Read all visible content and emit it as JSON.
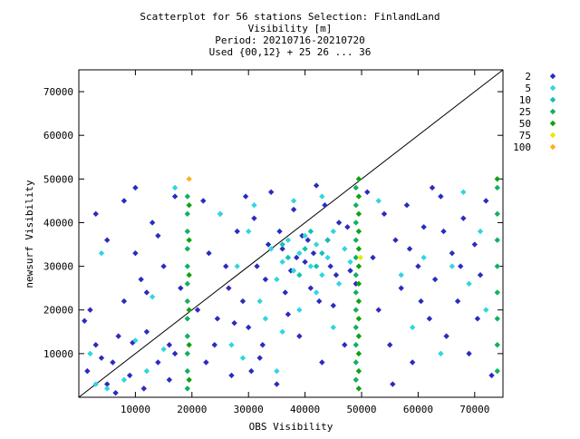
{
  "chart_data": {
    "type": "scatter",
    "title_lines": [
      "Scatterplot for   56 stations Selection: FinlandLand",
      "Visibility [m]",
      "Period: 20210716-20210720",
      "Used {00,12} + 25 26 ... 36"
    ],
    "xlabel": "OBS Visibility",
    "ylabel": "newsurf Visibility",
    "xlim": [
      0,
      75000
    ],
    "ylim": [
      0,
      75000
    ],
    "xticks": [
      10000,
      20000,
      30000,
      40000,
      50000,
      60000,
      70000
    ],
    "yticks": [
      10000,
      20000,
      30000,
      40000,
      50000,
      60000,
      70000
    ],
    "xtick_labels": [
      "10000",
      "20000",
      "30000",
      "40000",
      "50000",
      "60000",
      "70000"
    ],
    "ytick_labels": [
      "10000",
      "20000",
      "30000",
      "40000",
      "50000",
      "60000",
      "70000"
    ],
    "grid": false,
    "diagonal_line": true,
    "legend_position": "right",
    "legend": [
      {
        "label": "2",
        "color": "#2b2bbf"
      },
      {
        "label": "5",
        "color": "#2fd6e0"
      },
      {
        "label": "10",
        "color": "#12c0b0"
      },
      {
        "label": "25",
        "color": "#12b060"
      },
      {
        "label": "50",
        "color": "#10a010"
      },
      {
        "label": "75",
        "color": "#e8e800"
      },
      {
        "label": "100",
        "color": "#ffb020"
      }
    ],
    "series": [
      {
        "name": "2",
        "color": "#2b2bbf",
        "points": [
          [
            1000,
            17500
          ],
          [
            2000,
            20000
          ],
          [
            3000,
            12000
          ],
          [
            4000,
            9000
          ],
          [
            5000,
            3000
          ],
          [
            6000,
            8000
          ],
          [
            1500,
            6000
          ],
          [
            7000,
            14000
          ],
          [
            8000,
            22000
          ],
          [
            9000,
            5000
          ],
          [
            10000,
            33000
          ],
          [
            11000,
            27000
          ],
          [
            12000,
            15000
          ],
          [
            13000,
            40000
          ],
          [
            14000,
            8000
          ],
          [
            15000,
            30000
          ],
          [
            16000,
            12000
          ],
          [
            17000,
            46000
          ],
          [
            18000,
            25000
          ],
          [
            3000,
            42000
          ],
          [
            5000,
            36000
          ],
          [
            8000,
            45000
          ],
          [
            10000,
            48000
          ],
          [
            12000,
            24000
          ],
          [
            14000,
            37000
          ],
          [
            16000,
            4000
          ],
          [
            17000,
            10000
          ],
          [
            11500,
            2000
          ],
          [
            6500,
            1000
          ],
          [
            9500,
            12500
          ],
          [
            22000,
            45000
          ],
          [
            24000,
            12000
          ],
          [
            26000,
            30000
          ],
          [
            27000,
            5000
          ],
          [
            28000,
            38000
          ],
          [
            29000,
            22000
          ],
          [
            30000,
            16000
          ],
          [
            31000,
            41000
          ],
          [
            32000,
            9000
          ],
          [
            33000,
            27000
          ],
          [
            34000,
            47000
          ],
          [
            35000,
            3000
          ],
          [
            36000,
            34000
          ],
          [
            37000,
            19000
          ],
          [
            38000,
            43000
          ],
          [
            39000,
            14000
          ],
          [
            40000,
            31000
          ],
          [
            41000,
            25000
          ],
          [
            42000,
            48500
          ],
          [
            43000,
            8000
          ],
          [
            44000,
            36000
          ],
          [
            45000,
            21000
          ],
          [
            46000,
            40000
          ],
          [
            47000,
            12000
          ],
          [
            48000,
            29000
          ],
          [
            21000,
            20000
          ],
          [
            23000,
            33000
          ],
          [
            25000,
            42000
          ],
          [
            27500,
            17000
          ],
          [
            29500,
            46000
          ],
          [
            31500,
            30000
          ],
          [
            33500,
            35000
          ],
          [
            35500,
            38000
          ],
          [
            37500,
            29000
          ],
          [
            39500,
            37000
          ],
          [
            41500,
            33000
          ],
          [
            43500,
            44000
          ],
          [
            45500,
            28000
          ],
          [
            47500,
            39000
          ],
          [
            49000,
            26000
          ],
          [
            36500,
            24000
          ],
          [
            38500,
            32000
          ],
          [
            40500,
            36000
          ],
          [
            42500,
            22000
          ],
          [
            44500,
            30000
          ],
          [
            32500,
            12000
          ],
          [
            30500,
            6000
          ],
          [
            26500,
            25000
          ],
          [
            24500,
            18000
          ],
          [
            22500,
            8000
          ],
          [
            51000,
            47000
          ],
          [
            52000,
            32000
          ],
          [
            53000,
            20000
          ],
          [
            54000,
            42000
          ],
          [
            55000,
            12000
          ],
          [
            56000,
            36000
          ],
          [
            57000,
            25000
          ],
          [
            58000,
            44000
          ],
          [
            59000,
            8000
          ],
          [
            60000,
            30000
          ],
          [
            61000,
            39000
          ],
          [
            62000,
            18000
          ],
          [
            63000,
            27000
          ],
          [
            64000,
            46000
          ],
          [
            65000,
            14000
          ],
          [
            66000,
            33000
          ],
          [
            67000,
            22000
          ],
          [
            68000,
            41000
          ],
          [
            69000,
            10000
          ],
          [
            70000,
            35000
          ],
          [
            71000,
            28000
          ],
          [
            72000,
            45000
          ],
          [
            73000,
            5000
          ],
          [
            60500,
            22000
          ],
          [
            64500,
            38000
          ],
          [
            67500,
            30000
          ],
          [
            70500,
            18000
          ],
          [
            55500,
            3000
          ],
          [
            62500,
            48000
          ],
          [
            58500,
            34000
          ]
        ]
      },
      {
        "name": "5",
        "color": "#2fd6e0",
        "points": [
          [
            3000,
            3000
          ],
          [
            5000,
            2000
          ],
          [
            8000,
            4000
          ],
          [
            12000,
            6000
          ],
          [
            15000,
            11000
          ],
          [
            13000,
            23000
          ],
          [
            10000,
            13000
          ],
          [
            17000,
            48000
          ],
          [
            4000,
            33000
          ],
          [
            2000,
            10000
          ],
          [
            25000,
            42000
          ],
          [
            28000,
            30000
          ],
          [
            30000,
            38000
          ],
          [
            32000,
            22000
          ],
          [
            34000,
            34000
          ],
          [
            35000,
            27000
          ],
          [
            36000,
            31000
          ],
          [
            37000,
            36000
          ],
          [
            38000,
            29000
          ],
          [
            39000,
            33000
          ],
          [
            40000,
            37000
          ],
          [
            41000,
            30000
          ],
          [
            42000,
            35000
          ],
          [
            43000,
            28000
          ],
          [
            44000,
            32000
          ],
          [
            45000,
            38000
          ],
          [
            46000,
            26000
          ],
          [
            47000,
            34000
          ],
          [
            48000,
            31000
          ],
          [
            33000,
            18000
          ],
          [
            36000,
            15000
          ],
          [
            39000,
            20000
          ],
          [
            42000,
            24000
          ],
          [
            45000,
            16000
          ],
          [
            31000,
            44000
          ],
          [
            38000,
            45000
          ],
          [
            43000,
            46000
          ],
          [
            27000,
            12000
          ],
          [
            29000,
            9000
          ],
          [
            35000,
            6000
          ],
          [
            53000,
            45000
          ],
          [
            57000,
            28000
          ],
          [
            61000,
            32000
          ],
          [
            66000,
            30000
          ],
          [
            69000,
            26000
          ],
          [
            72000,
            20000
          ],
          [
            64000,
            10000
          ],
          [
            68000,
            47000
          ],
          [
            71000,
            38000
          ],
          [
            59000,
            16000
          ]
        ]
      },
      {
        "name": "10",
        "color": "#12c0b0",
        "points": [
          [
            37000,
            32000
          ],
          [
            40000,
            34000
          ],
          [
            42000,
            30000
          ],
          [
            44000,
            36000
          ],
          [
            39000,
            28000
          ],
          [
            41000,
            38000
          ],
          [
            36000,
            35000
          ],
          [
            43000,
            33000
          ]
        ]
      },
      {
        "name": "25",
        "color": "#12b060",
        "points": [
          [
            19200,
            2000
          ],
          [
            19200,
            6000
          ],
          [
            19200,
            10000
          ],
          [
            19200,
            14000
          ],
          [
            19200,
            18000
          ],
          [
            19200,
            22000
          ],
          [
            19200,
            26000
          ],
          [
            19200,
            30000
          ],
          [
            19200,
            34000
          ],
          [
            19200,
            38000
          ],
          [
            19200,
            42000
          ],
          [
            19200,
            46000
          ],
          [
            49000,
            4000
          ],
          [
            49000,
            8000
          ],
          [
            49000,
            12000
          ],
          [
            49000,
            16000
          ],
          [
            49000,
            20000
          ],
          [
            49000,
            24000
          ],
          [
            49000,
            28000
          ],
          [
            49000,
            32000
          ],
          [
            49000,
            36000
          ],
          [
            49000,
            40000
          ],
          [
            49000,
            44000
          ],
          [
            49000,
            48000
          ],
          [
            74000,
            6000
          ],
          [
            74000,
            12000
          ],
          [
            74000,
            18000
          ],
          [
            74000,
            24000
          ],
          [
            74000,
            30000
          ],
          [
            74000,
            36000
          ],
          [
            74000,
            42000
          ],
          [
            74000,
            48000
          ]
        ]
      },
      {
        "name": "50",
        "color": "#10a010",
        "points": [
          [
            49500,
            2000
          ],
          [
            49500,
            6000
          ],
          [
            49500,
            10000
          ],
          [
            49500,
            14000
          ],
          [
            49500,
            18000
          ],
          [
            49500,
            22000
          ],
          [
            49500,
            26000
          ],
          [
            49500,
            30000
          ],
          [
            49500,
            34000
          ],
          [
            49500,
            38000
          ],
          [
            49500,
            42000
          ],
          [
            49500,
            46000
          ],
          [
            49500,
            50000
          ],
          [
            19500,
            4000
          ],
          [
            19500,
            12000
          ],
          [
            19500,
            20000
          ],
          [
            19500,
            28000
          ],
          [
            19500,
            36000
          ],
          [
            19500,
            44000
          ],
          [
            74000,
            50000
          ]
        ]
      },
      {
        "name": "75",
        "color": "#e8e800",
        "points": [
          [
            49800,
            32000
          ]
        ]
      },
      {
        "name": "100",
        "color": "#ffb020",
        "points": [
          [
            19500,
            50000
          ]
        ]
      }
    ]
  }
}
